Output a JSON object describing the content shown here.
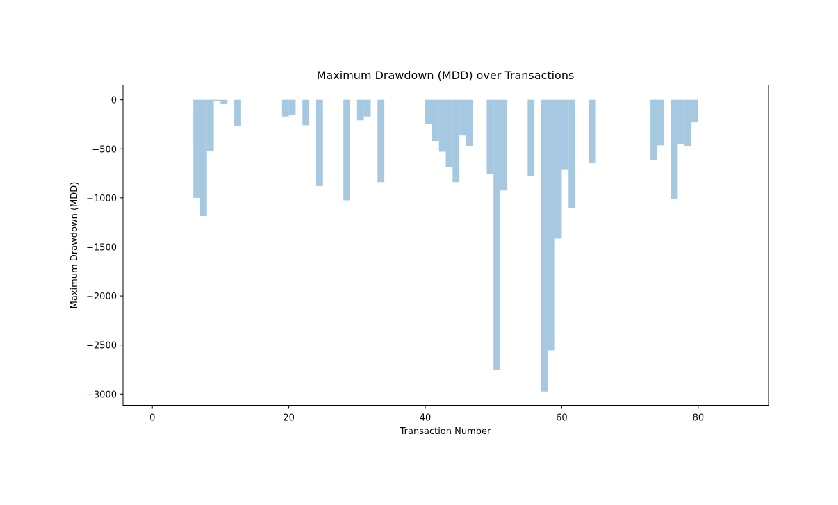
{
  "chart_data": {
    "type": "bar",
    "title": "Maximum Drawdown (MDD) over Transactions",
    "xlabel": "Transaction Number",
    "ylabel": "Maximum Drawdown (MDD)",
    "xlim": [
      -4.3,
      90.3
    ],
    "ylim": [
      -3115,
      150
    ],
    "xticks": [
      0,
      20,
      40,
      60,
      80
    ],
    "yticks": [
      0,
      -500,
      -1000,
      -1500,
      -2000,
      -2500,
      -3000
    ],
    "bar_color": "#a6c8e0",
    "bar_width": 1,
    "grid": false,
    "legend": "none",
    "points": [
      {
        "x": 6.5,
        "y": -1000
      },
      {
        "x": 7.5,
        "y": -1185
      },
      {
        "x": 8.5,
        "y": -520
      },
      {
        "x": 9.5,
        "y": -15
      },
      {
        "x": 10.5,
        "y": -45
      },
      {
        "x": 12.5,
        "y": -265
      },
      {
        "x": 19.5,
        "y": -170
      },
      {
        "x": 20.5,
        "y": -155
      },
      {
        "x": 22.5,
        "y": -260
      },
      {
        "x": 24.5,
        "y": -880
      },
      {
        "x": 28.5,
        "y": -1025
      },
      {
        "x": 30.5,
        "y": -210
      },
      {
        "x": 31.5,
        "y": -170
      },
      {
        "x": 33.5,
        "y": -840
      },
      {
        "x": 40.5,
        "y": -245
      },
      {
        "x": 41.5,
        "y": -420
      },
      {
        "x": 42.5,
        "y": -530
      },
      {
        "x": 43.5,
        "y": -685
      },
      {
        "x": 44.5,
        "y": -840
      },
      {
        "x": 45.5,
        "y": -365
      },
      {
        "x": 46.5,
        "y": -470
      },
      {
        "x": 49.5,
        "y": -755
      },
      {
        "x": 50.5,
        "y": -2750
      },
      {
        "x": 51.5,
        "y": -925
      },
      {
        "x": 55.5,
        "y": -780
      },
      {
        "x": 57.5,
        "y": -2975
      },
      {
        "x": 58.5,
        "y": -2555
      },
      {
        "x": 59.5,
        "y": -1415
      },
      {
        "x": 60.5,
        "y": -715
      },
      {
        "x": 61.5,
        "y": -1105
      },
      {
        "x": 64.5,
        "y": -640
      },
      {
        "x": 73.5,
        "y": -615
      },
      {
        "x": 74.5,
        "y": -465
      },
      {
        "x": 76.5,
        "y": -1015
      },
      {
        "x": 77.5,
        "y": -455
      },
      {
        "x": 78.5,
        "y": -470
      },
      {
        "x": 79.5,
        "y": -230
      }
    ]
  }
}
